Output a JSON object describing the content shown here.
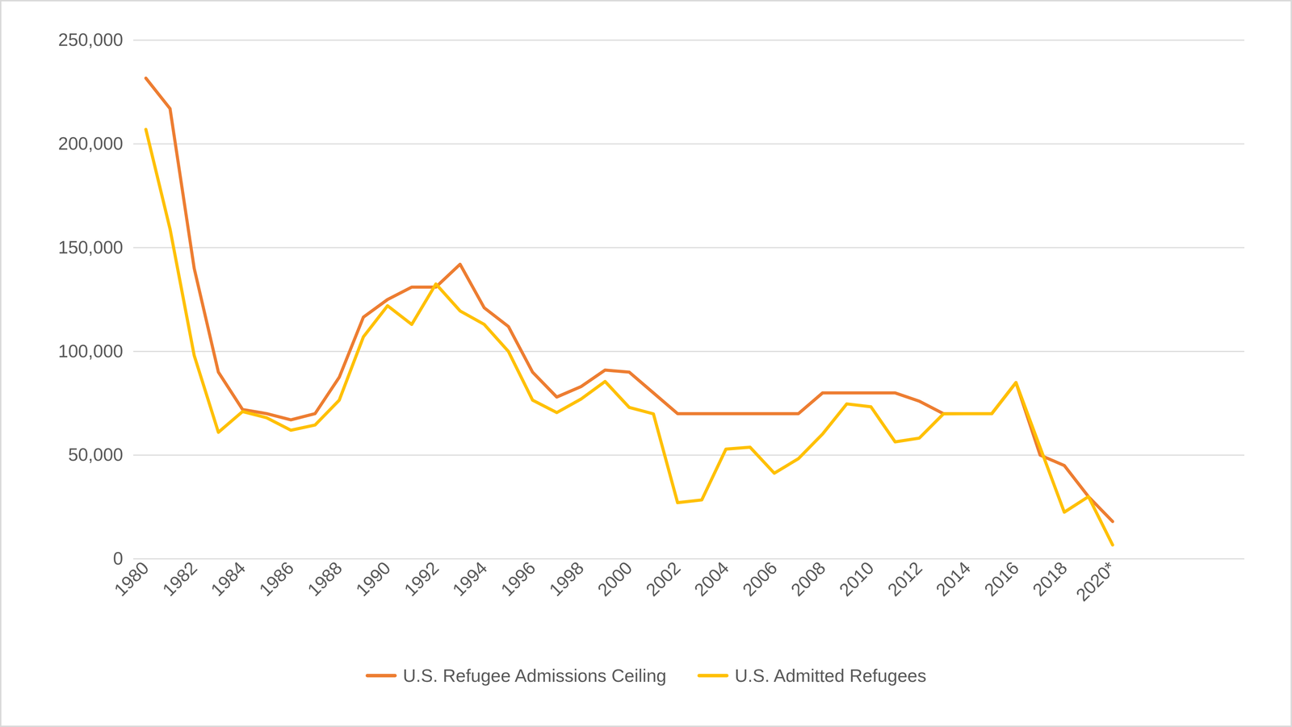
{
  "chart_data": {
    "type": "line",
    "categories": [
      "1980",
      null,
      "1982",
      null,
      "1984",
      null,
      "1986",
      null,
      "1988",
      null,
      "1990",
      null,
      "1992",
      null,
      "1994",
      null,
      "1996",
      null,
      "1998",
      null,
      "2000",
      null,
      "2002",
      null,
      "2004",
      null,
      "2006",
      null,
      "2008",
      null,
      "2010",
      null,
      "2012",
      null,
      "2014",
      null,
      "2016",
      null,
      "2018",
      null,
      "2020*"
    ],
    "series": [
      {
        "name": "U.S. Refugee Admissions Ceiling",
        "color": "#ED7D31",
        "values": [
          231700,
          217000,
          140000,
          90000,
          72000,
          70000,
          67000,
          70000,
          87500,
          116500,
          125000,
          131000,
          131000,
          142000,
          121000,
          112000,
          90000,
          78000,
          83000,
          91000,
          90000,
          80000,
          70000,
          70000,
          70000,
          70000,
          70000,
          70000,
          80000,
          80000,
          80000,
          80000,
          76000,
          70000,
          70000,
          70000,
          85000,
          50000,
          45000,
          30000,
          18000
        ]
      },
      {
        "name": "U.S. Admitted Refugees",
        "color": "#FFC000",
        "values": [
          207000,
          159000,
          98000,
          61000,
          71000,
          68000,
          62000,
          64500,
          76500,
          107000,
          122000,
          113000,
          132500,
          119500,
          113000,
          100000,
          76500,
          70500,
          77000,
          85500,
          73000,
          69900,
          27100,
          28400,
          52900,
          53800,
          41300,
          48300,
          60200,
          74700,
          73300,
          56400,
          58200,
          69900,
          70000,
          70000,
          85000,
          53700,
          22500,
          30000,
          6700
        ]
      }
    ],
    "ylim": [
      0,
      250000
    ],
    "yticks": [
      0,
      {
        "value": 50000,
        "label": "50,000"
      },
      {
        "value": 100000,
        "label": "100,000"
      },
      {
        "value": 150000,
        "label": "150,000"
      },
      {
        "value": 200000,
        "label": "200,000"
      },
      {
        "value": 250000,
        "label": "250,000"
      }
    ],
    "grid": true,
    "legend": "bottom"
  }
}
